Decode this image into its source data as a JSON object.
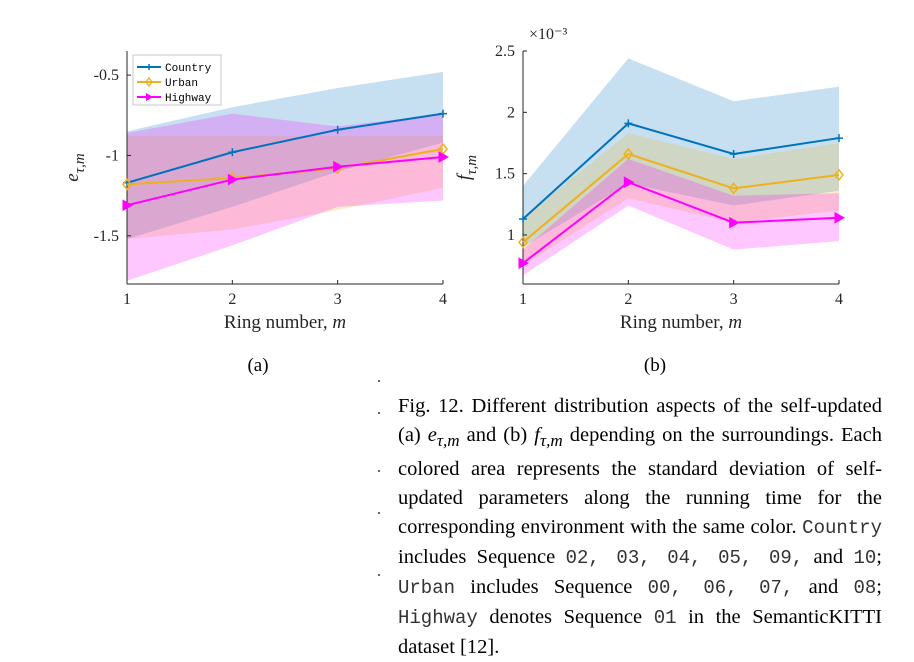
{
  "chart_data": [
    {
      "type": "line",
      "panel_label": "(a)",
      "ylabel_html": "e<sub>τ,m</sub>",
      "xlabel": "Ring number, m",
      "x": [
        1,
        2,
        3,
        4
      ],
      "xlim": [
        1,
        4
      ],
      "ylim": [
        -1.8,
        -0.35
      ],
      "yticks": [
        -1.5,
        -1,
        -0.5
      ],
      "ytick_labels": [
        "-1.5",
        "-1",
        "-0.5"
      ],
      "xtick_labels": [
        "1",
        "2",
        "3",
        "4"
      ],
      "grid": false,
      "legend": "top-left",
      "series": [
        {
          "name": "Country",
          "color": "#0072BD",
          "marker": "plus",
          "values": [
            -1.17,
            -0.98,
            -0.84,
            -0.74
          ],
          "lower": [
            -1.52,
            -1.32,
            -1.1,
            -0.92
          ],
          "upper": [
            -0.85,
            -0.7,
            -0.58,
            -0.48
          ]
        },
        {
          "name": "Urban",
          "color": "#EDB120",
          "marker": "diamond",
          "values": [
            -1.18,
            -1.14,
            -1.08,
            -0.96
          ],
          "lower": [
            -1.52,
            -1.46,
            -1.34,
            -1.2
          ],
          "upper": [
            -0.88,
            -0.88,
            -0.88,
            -0.88
          ]
        },
        {
          "name": "Highway",
          "color": "#FF00FF",
          "marker": "triangle-right",
          "values": [
            -1.31,
            -1.15,
            -1.07,
            -1.01
          ],
          "lower": [
            -1.78,
            -1.56,
            -1.32,
            -1.28
          ],
          "upper": [
            -0.86,
            -0.74,
            -0.82,
            -0.74
          ]
        }
      ]
    },
    {
      "type": "line",
      "panel_label": "(b)",
      "ylabel_html": "f<sub>τ,m</sub>",
      "xlabel": "Ring number, m",
      "exponent_label": "×10⁻³",
      "x": [
        1,
        2,
        3,
        4
      ],
      "xlim": [
        1,
        4
      ],
      "ylim": [
        0.6,
        2.5
      ],
      "yticks": [
        1,
        1.5,
        2,
        2.5
      ],
      "ytick_labels": [
        "1",
        "1.5",
        "2",
        "2.5"
      ],
      "xtick_labels": [
        "1",
        "2",
        "3",
        "4"
      ],
      "grid": false,
      "series": [
        {
          "name": "Country",
          "color": "#0072BD",
          "marker": "plus",
          "values": [
            1.13,
            1.91,
            1.66,
            1.79
          ],
          "lower": [
            0.9,
            1.42,
            1.24,
            1.36
          ],
          "upper": [
            1.4,
            2.44,
            2.09,
            2.21
          ]
        },
        {
          "name": "Urban",
          "color": "#EDB120",
          "marker": "diamond",
          "values": [
            0.94,
            1.66,
            1.38,
            1.49
          ],
          "lower": [
            0.75,
            1.3,
            1.1,
            1.2
          ],
          "upper": [
            1.14,
            1.83,
            1.62,
            1.75
          ]
        },
        {
          "name": "Highway",
          "color": "#FF00FF",
          "marker": "triangle-right",
          "values": [
            0.77,
            1.43,
            1.1,
            1.14
          ],
          "lower": [
            0.67,
            1.24,
            0.88,
            0.95
          ],
          "upper": [
            0.88,
            1.62,
            1.32,
            1.34
          ]
        }
      ]
    }
  ],
  "caption": {
    "p1": "Fig. 12. Different distribution aspects of the self-updated (a) ",
    "m1": "e",
    "m1sub": "τ,m",
    "p2": " and (b) ",
    "m2": "f",
    "m2sub": "τ,m",
    "p3": " depending on the surroundings. Each colored area represents the standard deviation of self-updated parameters along the running time for the corresponding environment with the same color. ",
    "c1": "Country",
    "p4": " includes Sequence ",
    "c1seq": "02, 03, 04, 05, 09,",
    "p5": " and ",
    "c1last": "10",
    "p6": "; ",
    "c2": "Urban",
    "p7": " includes Sequence ",
    "c2seq": "00, 06, 07,",
    "p8": " and ",
    "c2last": "08",
    "p9": "; ",
    "c3": "Highway",
    "p10": " denotes Sequence ",
    "c3seq": "01",
    "p11": " in the SemanticKITTI dataset [12]."
  }
}
